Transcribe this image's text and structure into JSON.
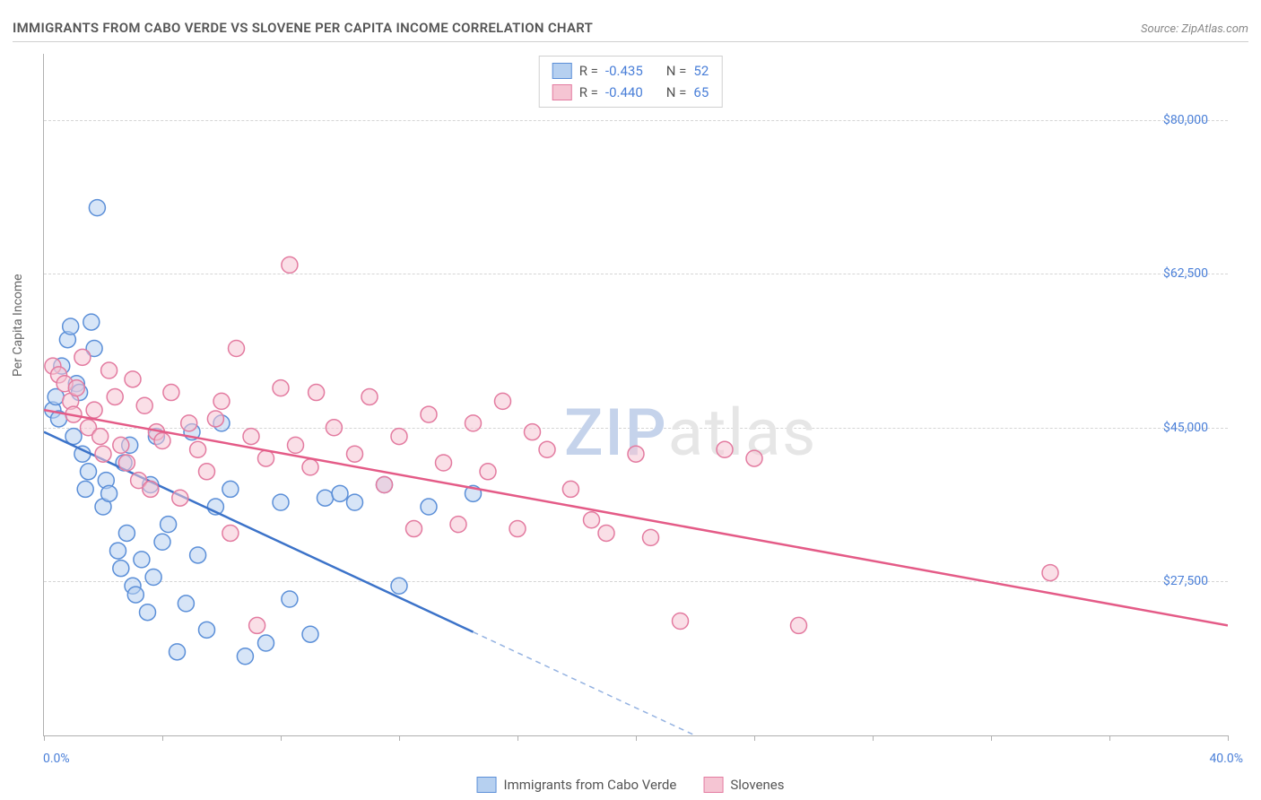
{
  "header": {
    "title": "IMMIGRANTS FROM CABO VERDE VS SLOVENE PER CAPITA INCOME CORRELATION CHART",
    "source": "Source: ZipAtlas.com"
  },
  "watermark": {
    "part1": "ZIP",
    "part2": "atlas"
  },
  "axes": {
    "ylabel": "Per Capita Income",
    "xlim": [
      0,
      40
    ],
    "ylim": [
      10000,
      87500
    ],
    "x_start_label": "0.0%",
    "x_end_label": "40.0%",
    "yticks": [
      {
        "value": 27500,
        "label": "$27,500"
      },
      {
        "value": 45000,
        "label": "$45,000"
      },
      {
        "value": 62500,
        "label": "$62,500"
      },
      {
        "value": 80000,
        "label": "$80,000"
      }
    ],
    "xtick_step_pct": 10
  },
  "series": [
    {
      "id": "cabo_verde",
      "label": "Immigrants from Cabo Verde",
      "fill": "#b6d0f0",
      "stroke": "#5b8fd8",
      "line_color": "#3c73c9",
      "r_value": "-0.435",
      "n_value": "52",
      "regression": {
        "x1": 0,
        "y1": 44500,
        "x2": 22,
        "y2": 10000,
        "extrapolate": true,
        "data_xmax": 14.5
      },
      "marker_radius": 9,
      "marker_opacity": 0.55,
      "points": [
        [
          0.3,
          47000
        ],
        [
          0.4,
          48500
        ],
        [
          0.5,
          46000
        ],
        [
          0.6,
          52000
        ],
        [
          0.8,
          55000
        ],
        [
          0.9,
          56500
        ],
        [
          1.0,
          44000
        ],
        [
          1.1,
          50000
        ],
        [
          1.2,
          49000
        ],
        [
          1.3,
          42000
        ],
        [
          1.4,
          38000
        ],
        [
          1.5,
          40000
        ],
        [
          1.6,
          57000
        ],
        [
          1.7,
          54000
        ],
        [
          1.8,
          70000
        ],
        [
          2.0,
          36000
        ],
        [
          2.1,
          39000
        ],
        [
          2.2,
          37500
        ],
        [
          2.5,
          31000
        ],
        [
          2.6,
          29000
        ],
        [
          2.7,
          41000
        ],
        [
          2.8,
          33000
        ],
        [
          2.9,
          43000
        ],
        [
          3.0,
          27000
        ],
        [
          3.1,
          26000
        ],
        [
          3.3,
          30000
        ],
        [
          3.5,
          24000
        ],
        [
          3.6,
          38500
        ],
        [
          3.7,
          28000
        ],
        [
          3.8,
          44000
        ],
        [
          4.0,
          32000
        ],
        [
          4.2,
          34000
        ],
        [
          4.5,
          19500
        ],
        [
          4.8,
          25000
        ],
        [
          5.0,
          44500
        ],
        [
          5.2,
          30500
        ],
        [
          5.5,
          22000
        ],
        [
          5.8,
          36000
        ],
        [
          6.0,
          45500
        ],
        [
          6.3,
          38000
        ],
        [
          6.8,
          19000
        ],
        [
          7.5,
          20500
        ],
        [
          8.0,
          36500
        ],
        [
          8.3,
          25500
        ],
        [
          9.0,
          21500
        ],
        [
          9.5,
          37000
        ],
        [
          10.0,
          37500
        ],
        [
          10.5,
          36500
        ],
        [
          11.5,
          38500
        ],
        [
          12.0,
          27000
        ],
        [
          13.0,
          36000
        ],
        [
          14.5,
          37500
        ]
      ]
    },
    {
      "id": "slovenes",
      "label": "Slovenes",
      "fill": "#f5c5d3",
      "stroke": "#e37ba0",
      "line_color": "#e45b87",
      "r_value": "-0.440",
      "n_value": "65",
      "regression": {
        "x1": 0,
        "y1": 47000,
        "x2": 40,
        "y2": 22500,
        "extrapolate": false,
        "data_xmax": 40
      },
      "marker_radius": 9,
      "marker_opacity": 0.55,
      "points": [
        [
          0.3,
          52000
        ],
        [
          0.5,
          51000
        ],
        [
          0.7,
          50000
        ],
        [
          0.9,
          48000
        ],
        [
          1.0,
          46500
        ],
        [
          1.1,
          49500
        ],
        [
          1.3,
          53000
        ],
        [
          1.5,
          45000
        ],
        [
          1.7,
          47000
        ],
        [
          1.9,
          44000
        ],
        [
          2.0,
          42000
        ],
        [
          2.2,
          51500
        ],
        [
          2.4,
          48500
        ],
        [
          2.6,
          43000
        ],
        [
          2.8,
          41000
        ],
        [
          3.0,
          50500
        ],
        [
          3.2,
          39000
        ],
        [
          3.4,
          47500
        ],
        [
          3.6,
          38000
        ],
        [
          3.8,
          44500
        ],
        [
          4.0,
          43500
        ],
        [
          4.3,
          49000
        ],
        [
          4.6,
          37000
        ],
        [
          4.9,
          45500
        ],
        [
          5.2,
          42500
        ],
        [
          5.5,
          40000
        ],
        [
          5.8,
          46000
        ],
        [
          6.0,
          48000
        ],
        [
          6.3,
          33000
        ],
        [
          6.5,
          54000
        ],
        [
          7.0,
          44000
        ],
        [
          7.2,
          22500
        ],
        [
          7.5,
          41500
        ],
        [
          8.0,
          49500
        ],
        [
          8.3,
          63500
        ],
        [
          8.5,
          43000
        ],
        [
          9.0,
          40500
        ],
        [
          9.2,
          49000
        ],
        [
          9.8,
          45000
        ],
        [
          10.5,
          42000
        ],
        [
          11.0,
          48500
        ],
        [
          11.5,
          38500
        ],
        [
          12.0,
          44000
        ],
        [
          12.5,
          33500
        ],
        [
          13.0,
          46500
        ],
        [
          13.5,
          41000
        ],
        [
          14.0,
          34000
        ],
        [
          14.5,
          45500
        ],
        [
          15.0,
          40000
        ],
        [
          15.5,
          48000
        ],
        [
          16.0,
          33500
        ],
        [
          16.5,
          44500
        ],
        [
          17.0,
          42500
        ],
        [
          17.8,
          38000
        ],
        [
          18.5,
          34500
        ],
        [
          19.0,
          33000
        ],
        [
          20.0,
          42000
        ],
        [
          20.5,
          32500
        ],
        [
          21.5,
          23000
        ],
        [
          23.0,
          42500
        ],
        [
          24.0,
          41500
        ],
        [
          25.5,
          22500
        ],
        [
          34.0,
          28500
        ]
      ]
    }
  ],
  "colors": {
    "grid": "#d5d5d5",
    "axis": "#b0b0b0",
    "tick_text": "#4a7fd8",
    "title_text": "#555555",
    "background": "#ffffff"
  },
  "legend_labels": {
    "r_prefix": "R = ",
    "n_prefix": "N = "
  }
}
